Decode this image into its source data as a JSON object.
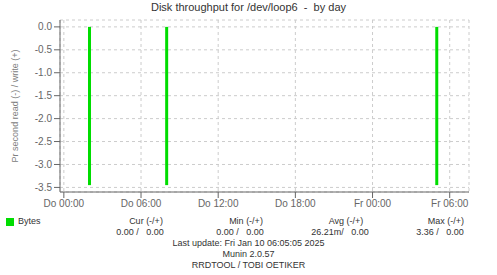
{
  "chart_data": {
    "type": "bar",
    "title": "Disk throughput for /dev/loop6  -  by day",
    "y_label": "Pr second read (-) / write (+)",
    "x": [
      2,
      8,
      29
    ],
    "series": [
      {
        "name": "Bytes",
        "color": "#00dd00",
        "values": [
          -3.45,
          -3.45,
          -3.45
        ]
      }
    ],
    "xlim": [
      -0.3,
      31.5
    ],
    "xticks": [
      {
        "value": 0,
        "label": "Do 00:00"
      },
      {
        "value": 6,
        "label": "Do 06:00"
      },
      {
        "value": 12,
        "label": "Do 12:00"
      },
      {
        "value": 18,
        "label": "Do 18:00"
      },
      {
        "value": 24,
        "label": "Fr 00:00"
      },
      {
        "value": 30,
        "label": "Fr 06:00"
      }
    ],
    "ylim": [
      -3.6,
      0.15
    ],
    "yticks": [
      {
        "value": 0.0,
        "label": "0.0"
      },
      {
        "value": -0.5,
        "label": "-0.5"
      },
      {
        "value": -1.0,
        "label": "-1.0"
      },
      {
        "value": -1.5,
        "label": "-1.5"
      },
      {
        "value": -2.0,
        "label": "-2.0"
      },
      {
        "value": -2.5,
        "label": "-2.5"
      },
      {
        "value": -3.0,
        "label": "-3.0"
      },
      {
        "value": -3.5,
        "label": "-3.5"
      }
    ],
    "grid": true,
    "annotations": [
      "Cur (-/+)",
      "Min (-/+)",
      "Avg (-/+)",
      "Max (-/+)",
      "0.00 /   0.00",
      "0.00 /   0.00",
      "26.21m/   0.00",
      "3.36 /   0.00",
      "Last update: Fri Jan 10 06:05:05 2025",
      "Munin 2.0.57",
      "RRDTOOL / TOBI OETIKER"
    ]
  }
}
